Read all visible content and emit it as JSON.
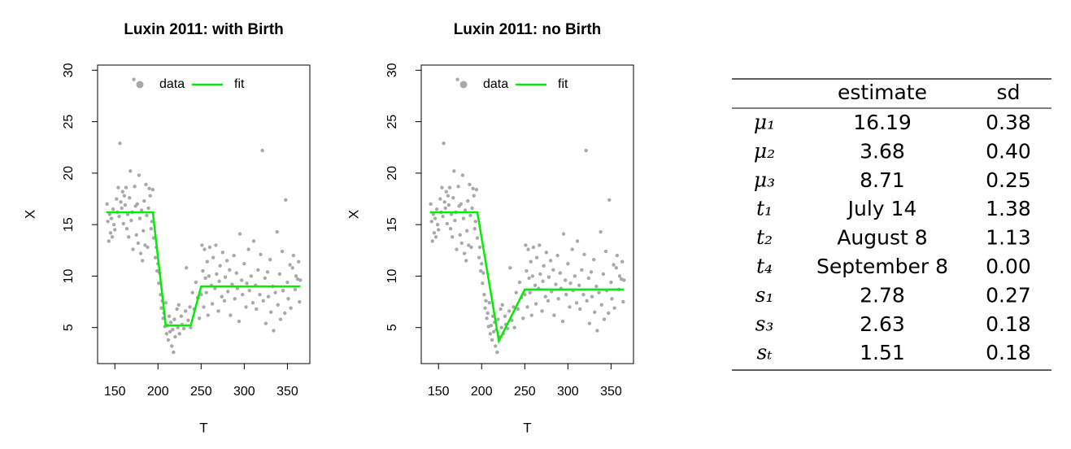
{
  "chart_data": [
    {
      "type": "scatter",
      "title": "Luxin 2011: with Birth",
      "x_label": "T",
      "y_label": "X",
      "xlim": [
        130,
        376
      ],
      "ylim": [
        1.5,
        30.5
      ],
      "xticks": [
        150,
        200,
        250,
        300,
        350
      ],
      "yticks": [
        5,
        10,
        15,
        20,
        25,
        30
      ],
      "grid": false,
      "legend": "top-left",
      "series": [
        {
          "name": "data",
          "color": "#a9a9a9",
          "mode": "points",
          "x": [
            141,
            142,
            143,
            144,
            145,
            146,
            147,
            148,
            149,
            150,
            152,
            153,
            154,
            155,
            156,
            157,
            158,
            159,
            160,
            161,
            162,
            163,
            164,
            165,
            166,
            167,
            168,
            169,
            170,
            171,
            172,
            173,
            174,
            175,
            176,
            177,
            178,
            179,
            180,
            181,
            182,
            183,
            184,
            185,
            186,
            187,
            188,
            189,
            190,
            191,
            192,
            193,
            194,
            195,
            197,
            198,
            199,
            200,
            201,
            202,
            203,
            204,
            205,
            206,
            207,
            208,
            209,
            210,
            211,
            212,
            213,
            214,
            215,
            216,
            217,
            218,
            219,
            220,
            222,
            223,
            224,
            225,
            227,
            228,
            230,
            232,
            233,
            235,
            237,
            238,
            240,
            242,
            244,
            246,
            248,
            250,
            251,
            252,
            253,
            254,
            255,
            256,
            257,
            258,
            259,
            260,
            262,
            263,
            264,
            266,
            267,
            268,
            270,
            271,
            272,
            274,
            275,
            277,
            278,
            280,
            281,
            283,
            284,
            286,
            288,
            289,
            291,
            292,
            294,
            295,
            297,
            298,
            300,
            302,
            303,
            305,
            306,
            308,
            310,
            311,
            313,
            314,
            316,
            318,
            319,
            321,
            322,
            324,
            325,
            327,
            328,
            330,
            331,
            333,
            334,
            336,
            338,
            339,
            341,
            342,
            344,
            345,
            347,
            348,
            350,
            351,
            353,
            354,
            356,
            357,
            359,
            360,
            362,
            363,
            364,
            365
          ],
          "values": [
            17,
            15.3,
            13.4,
            16,
            14.2,
            15.6,
            13.8,
            16.5,
            15,
            14.5,
            17.5,
            16.2,
            18.6,
            15.8,
            22.9,
            17.2,
            16.6,
            18.2,
            15.1,
            17.8,
            16.9,
            18.6,
            14.6,
            16,
            13.8,
            17.6,
            20.2,
            15.4,
            16.2,
            12.6,
            29.1,
            18.7,
            16.8,
            14,
            17,
            13.2,
            19.8,
            15.6,
            12.2,
            16.4,
            11.5,
            14.4,
            17.3,
            13,
            18.9,
            15.9,
            12.8,
            16.6,
            18.5,
            17.8,
            14.6,
            15.3,
            18.4,
            13.7,
            11.8,
            12.8,
            10.5,
            11.2,
            9.3,
            10.3,
            8.2,
            6.9,
            7.6,
            5.9,
            6.4,
            5.1,
            7.4,
            4.4,
            5.2,
            3.8,
            6.1,
            4.6,
            5.5,
            3.2,
            4.8,
            2.6,
            5.8,
            4.1,
            6.8,
            5,
            7.2,
            4.4,
            6.1,
            5.3,
            4.9,
            6.6,
            10.8,
            5.7,
            7,
            5,
            8.4,
            6.8,
            9.4,
            7.9,
            5.9,
            8.2,
            13,
            10.5,
            7,
            12.6,
            9.8,
            8.4,
            11.4,
            6.2,
            10,
            12.8,
            9.1,
            7.3,
            11.8,
            8.8,
            13,
            10.2,
            6.6,
            9.5,
            11,
            8,
            12.3,
            7.6,
            9.9,
            11.5,
            8.5,
            10.6,
            6.2,
            9.2,
            12,
            7.8,
            10.3,
            8.8,
            5.6,
            14.1,
            9.6,
            8.2,
            11.2,
            7,
            9.3,
            12.6,
            8.6,
            10,
            7.4,
            13.4,
            9.1,
            6.8,
            10.6,
            8.2,
            12.1,
            22.2,
            7.6,
            9.8,
            5.4,
            10.4,
            8,
            11.6,
            6.5,
            9,
            4.7,
            8.4,
            14.3,
            7.2,
            10.2,
            5.8,
            12.4,
            8.6,
            6.4,
            17.4,
            9.4,
            7.8,
            11.1,
            6.9,
            10.8,
            12,
            8.7,
            10,
            9.7,
            11.4,
            7.5,
            9.6
          ]
        },
        {
          "name": "fit",
          "color": "#00ee00",
          "mode": "line",
          "x": [
            140,
            194,
            209,
            238,
            250,
            365
          ],
          "values": [
            16.2,
            16.2,
            5.2,
            5.2,
            9,
            9
          ]
        }
      ]
    },
    {
      "type": "scatter",
      "title": "Luxin 2011: no Birth",
      "x_label": "T",
      "y_label": "X",
      "xlim": [
        130,
        376
      ],
      "ylim": [
        1.5,
        30.5
      ],
      "xticks": [
        150,
        200,
        250,
        300,
        350
      ],
      "yticks": [
        5,
        10,
        15,
        20,
        25,
        30
      ],
      "grid": false,
      "legend": "top-left",
      "series": [
        {
          "name": "data",
          "color": "#a9a9a9",
          "mode": "points",
          "x": [
            141,
            142,
            143,
            144,
            145,
            146,
            147,
            148,
            149,
            150,
            152,
            153,
            154,
            155,
            156,
            157,
            158,
            159,
            160,
            161,
            162,
            163,
            164,
            165,
            166,
            167,
            168,
            169,
            170,
            171,
            172,
            173,
            174,
            175,
            176,
            177,
            178,
            179,
            180,
            181,
            182,
            183,
            184,
            185,
            186,
            187,
            188,
            189,
            190,
            191,
            192,
            193,
            194,
            195,
            197,
            198,
            199,
            200,
            201,
            202,
            203,
            204,
            205,
            206,
            207,
            208,
            209,
            210,
            211,
            212,
            213,
            214,
            215,
            216,
            217,
            218,
            219,
            220,
            222,
            223,
            224,
            225,
            227,
            228,
            230,
            232,
            233,
            235,
            237,
            238,
            240,
            242,
            244,
            246,
            248,
            250,
            251,
            252,
            253,
            254,
            255,
            256,
            257,
            258,
            259,
            260,
            262,
            263,
            264,
            266,
            267,
            268,
            270,
            271,
            272,
            274,
            275,
            277,
            278,
            280,
            281,
            283,
            284,
            286,
            288,
            289,
            291,
            292,
            294,
            295,
            297,
            298,
            300,
            302,
            303,
            305,
            306,
            308,
            310,
            311,
            313,
            314,
            316,
            318,
            319,
            321,
            322,
            324,
            325,
            327,
            328,
            330,
            331,
            333,
            334,
            336,
            338,
            339,
            341,
            342,
            344,
            345,
            347,
            348,
            350,
            351,
            353,
            354,
            356,
            357,
            359,
            360,
            362,
            363,
            364,
            365
          ],
          "values": [
            17,
            15.3,
            13.4,
            16,
            14.2,
            15.6,
            13.8,
            16.5,
            15,
            14.5,
            17.5,
            16.2,
            18.6,
            15.8,
            22.9,
            17.2,
            16.6,
            18.2,
            15.1,
            17.8,
            16.9,
            18.6,
            14.6,
            16,
            13.8,
            17.6,
            20.2,
            15.4,
            16.2,
            12.6,
            29.1,
            18.7,
            16.8,
            14,
            17,
            13.2,
            19.8,
            15.6,
            12.2,
            16.4,
            11.5,
            14.4,
            17.3,
            13,
            18.9,
            15.9,
            12.8,
            16.6,
            18.5,
            17.8,
            14.6,
            15.3,
            18.4,
            13.7,
            11.8,
            12.8,
            10.5,
            11.2,
            9.3,
            10.3,
            8.2,
            6.9,
            7.6,
            5.9,
            6.4,
            5.1,
            7.4,
            4.4,
            5.2,
            3.8,
            6.1,
            4.6,
            5.5,
            3.2,
            4.8,
            2.6,
            5.8,
            4.1,
            6.8,
            5,
            7.2,
            4.4,
            6.1,
            5.3,
            4.9,
            6.6,
            10.8,
            5.7,
            7,
            5,
            8.4,
            6.8,
            9.4,
            7.9,
            5.9,
            8.2,
            13,
            10.5,
            7,
            12.6,
            9.8,
            8.4,
            11.4,
            6.2,
            10,
            12.8,
            9.1,
            7.3,
            11.8,
            8.8,
            13,
            10.2,
            6.6,
            9.5,
            11,
            8,
            12.3,
            7.6,
            9.9,
            11.5,
            8.5,
            10.6,
            6.2,
            9.2,
            12,
            7.8,
            10.3,
            8.8,
            5.6,
            14.1,
            9.6,
            8.2,
            11.2,
            7,
            9.3,
            12.6,
            8.6,
            10,
            7.4,
            13.4,
            9.1,
            6.8,
            10.6,
            8.2,
            12.1,
            22.2,
            7.6,
            9.8,
            5.4,
            10.4,
            8,
            11.6,
            6.5,
            9,
            4.7,
            8.4,
            14.3,
            7.2,
            10.2,
            5.8,
            12.4,
            8.6,
            6.4,
            17.4,
            9.4,
            7.8,
            11.1,
            6.9,
            10.8,
            12,
            8.7,
            10,
            9.7,
            11.4,
            7.5,
            9.6
          ]
        },
        {
          "name": "fit",
          "color": "#00ee00",
          "mode": "line",
          "x": [
            140,
            195,
            220,
            250,
            365
          ],
          "values": [
            16.2,
            16.2,
            3.7,
            8.7,
            8.7
          ]
        }
      ]
    }
  ],
  "table": {
    "columns": [
      "estimate",
      "sd"
    ],
    "rows": [
      {
        "label": "μ₁",
        "estimate": "16.19",
        "sd": "0.38"
      },
      {
        "label": "μ₂",
        "estimate": "3.68",
        "sd": "0.40"
      },
      {
        "label": "μ₃",
        "estimate": "8.71",
        "sd": "0.25"
      },
      {
        "label": "t₁",
        "estimate": "July 14",
        "sd": "1.38"
      },
      {
        "label": "t₂",
        "estimate": "August 8",
        "sd": "1.13"
      },
      {
        "label": "t₄",
        "estimate": "September 8",
        "sd": "0.00"
      },
      {
        "label": "s₁",
        "estimate": "2.78",
        "sd": "0.27"
      },
      {
        "label": "s₃",
        "estimate": "2.63",
        "sd": "0.18"
      },
      {
        "label": "sₜ",
        "estimate": "1.51",
        "sd": "0.18"
      }
    ]
  }
}
